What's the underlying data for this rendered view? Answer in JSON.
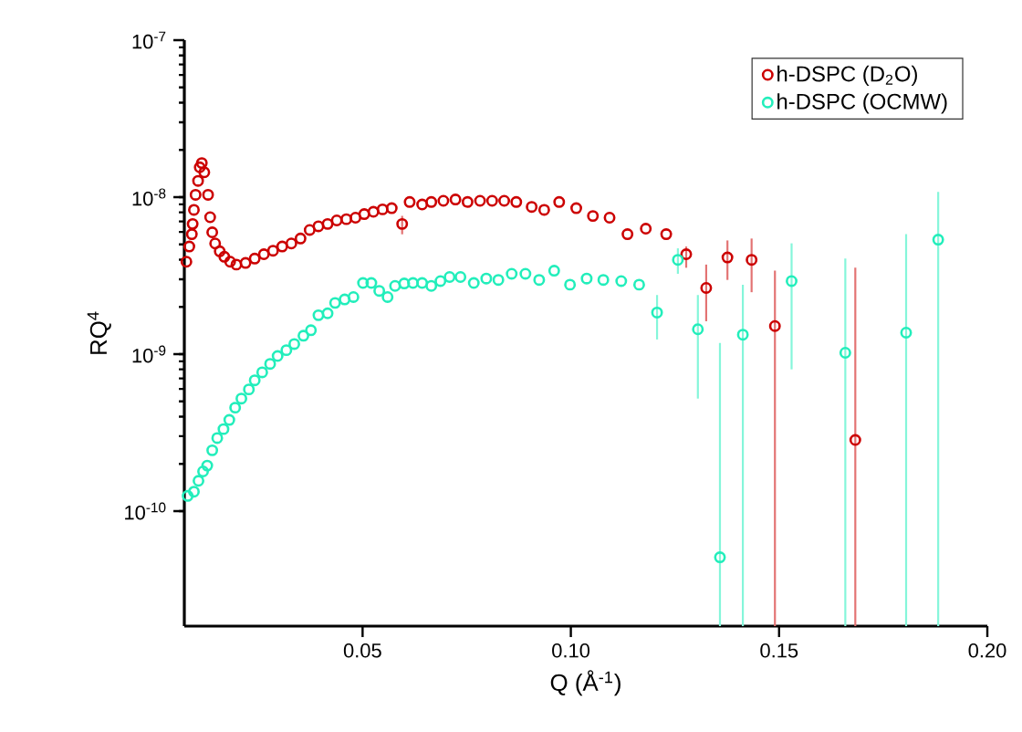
{
  "chart_data": {
    "type": "scatter",
    "xlabel": "Q (Å$^{-1}$)",
    "ylabel": "RQ$^{4}$",
    "log": "y",
    "marker": "circle",
    "legend": "top right",
    "grid": false,
    "xlim": [
      0.0072,
      0.2
    ],
    "ylim": [
      1.85e-11,
      1e-07
    ],
    "xticks": [
      0.05,
      {
        "value": 0.1,
        "label": "0.10"
      },
      0.15,
      {
        "value": 0.2,
        "label": "0.20"
      }
    ],
    "yticks": [
      {
        "value": 1e-10,
        "label": "10$^{-10}$"
      },
      {
        "value": 1e-09,
        "label": "10$^{-9}$"
      },
      {
        "value": 1e-08,
        "label": "10$^{-8}$"
      },
      {
        "value": 1e-07,
        "label": "10$^{-7}$"
      }
    ],
    "series": [
      {
        "name": "h-DSPC (D$_{2}$O)",
        "color": "#cc0000",
        "x": [
          0.0077,
          0.0084,
          0.009,
          0.0092,
          0.0095,
          0.0099,
          0.0105,
          0.0109,
          0.0114,
          0.012,
          0.0129,
          0.0134,
          0.0139,
          0.0146,
          0.0157,
          0.0168,
          0.0182,
          0.0197,
          0.0219,
          0.0241,
          0.0263,
          0.0285,
          0.0307,
          0.0329,
          0.0351,
          0.0373,
          0.0394,
          0.0416,
          0.0438,
          0.0461,
          0.0483,
          0.0504,
          0.0526,
          0.0548,
          0.057,
          0.0595,
          0.0613,
          0.0643,
          0.0665,
          0.0694,
          0.0723,
          0.0752,
          0.0782,
          0.0811,
          0.084,
          0.0869,
          0.0906,
          0.0936,
          0.0972,
          0.1013,
          0.1053,
          0.1093,
          0.1136,
          0.118,
          0.1229,
          0.1277,
          0.1325,
          0.1376,
          0.1434,
          0.149,
          0.1683
        ],
        "values": [
          3.88e-09,
          4.85e-09,
          5.81e-09,
          6.75e-09,
          8.3e-09,
          1.035e-08,
          1.27e-08,
          1.55e-08,
          1.65e-08,
          1.44e-08,
          1.035e-08,
          7.45e-09,
          5.97e-09,
          5.07e-09,
          4.52e-09,
          4.17e-09,
          3.88e-09,
          3.72e-09,
          3.81e-09,
          4.06e-09,
          4.33e-09,
          4.56e-09,
          4.85e-09,
          5.07e-09,
          5.45e-09,
          6.18e-09,
          6.52e-09,
          6.75e-09,
          7.11e-09,
          7.24e-09,
          7.4e-09,
          7.8e-09,
          8.07e-09,
          8.36e-09,
          8.51e-09,
          6.75e-09,
          9.31e-09,
          8.98e-09,
          9.31e-09,
          9.48e-09,
          9.66e-09,
          9.31e-09,
          9.48e-09,
          9.48e-09,
          9.48e-09,
          9.31e-09,
          8.67e-09,
          8.3e-09,
          9.31e-09,
          8.51e-09,
          7.59e-09,
          7.4e-09,
          5.81e-09,
          6.3e-09,
          5.81e-09,
          4.33e-09,
          2.64e-09,
          4.13e-09,
          3.99e-09,
          1.51e-09,
          2.84e-10
        ],
        "errors": [
          null,
          null,
          null,
          null,
          null,
          null,
          null,
          null,
          null,
          null,
          null,
          null,
          null,
          null,
          null,
          null,
          null,
          null,
          null,
          null,
          null,
          null,
          null,
          null,
          null,
          null,
          null,
          null,
          null,
          null,
          null,
          null,
          null,
          null,
          null,
          [
            5.8e-09,
            7.6e-09
          ],
          null,
          null,
          null,
          null,
          null,
          null,
          null,
          null,
          null,
          null,
          null,
          null,
          null,
          null,
          null,
          null,
          null,
          null,
          null,
          [
            3.55e-09,
            4.85e-09
          ],
          [
            1.62e-09,
            3.72e-09
          ],
          [
            2.97e-09,
            5.3e-09
          ],
          [
            2.48e-09,
            5.45e-09
          ],
          [
            1.85e-11,
            3.4e-09
          ],
          [
            1.85e-11,
            3.55e-09
          ]
        ]
      },
      {
        "name": "h-DSPC (OCMW)",
        "color": "#22eebb",
        "x": [
          0.008,
          0.0095,
          0.0106,
          0.0117,
          0.0127,
          0.0139,
          0.0151,
          0.0166,
          0.018,
          0.0194,
          0.0209,
          0.0227,
          0.0241,
          0.0259,
          0.0278,
          0.0296,
          0.0317,
          0.0336,
          0.0358,
          0.0376,
          0.0394,
          0.0416,
          0.0434,
          0.0457,
          0.0478,
          0.0501,
          0.0521,
          0.054,
          0.056,
          0.0578,
          0.06,
          0.0621,
          0.0643,
          0.0665,
          0.0687,
          0.0709,
          0.0735,
          0.0767,
          0.0797,
          0.0826,
          0.0858,
          0.0891,
          0.0924,
          0.096,
          0.0998,
          0.1038,
          0.1078,
          0.1121,
          0.1164,
          0.1207,
          0.1257,
          0.1305,
          0.1358,
          0.1413,
          0.153,
          0.1659,
          0.1805,
          0.1882
        ],
        "values": [
          1.25e-10,
          1.33e-10,
          1.56e-10,
          1.79e-10,
          1.95e-10,
          2.44e-10,
          2.92e-10,
          3.33e-10,
          3.81e-10,
          4.56e-10,
          5.21e-10,
          5.96e-10,
          6.81e-10,
          7.66e-10,
          8.67e-10,
          9.73e-10,
          1.06e-09,
          1.16e-09,
          1.31e-09,
          1.42e-09,
          1.77e-09,
          1.82e-09,
          2.12e-09,
          2.23e-09,
          2.31e-09,
          2.84e-09,
          2.84e-09,
          2.53e-09,
          2.31e-09,
          2.72e-09,
          2.82e-09,
          2.84e-09,
          2.84e-09,
          2.72e-09,
          2.92e-09,
          3.1e-09,
          3.1e-09,
          2.84e-09,
          3.03e-09,
          2.97e-09,
          3.25e-09,
          3.25e-09,
          2.97e-09,
          3.4e-09,
          2.77e-09,
          3.03e-09,
          2.97e-09,
          2.92e-09,
          2.77e-09,
          1.84e-09,
          3.99e-09,
          1.44e-09,
          5.08e-11,
          1.33e-09,
          2.92e-09,
          1.02e-09,
          1.37e-09,
          5.36e-09
        ],
        "errors": [
          null,
          null,
          null,
          null,
          null,
          null,
          null,
          null,
          null,
          null,
          null,
          null,
          null,
          null,
          null,
          null,
          null,
          null,
          null,
          null,
          null,
          null,
          null,
          null,
          null,
          null,
          null,
          null,
          null,
          null,
          null,
          null,
          null,
          null,
          null,
          null,
          null,
          null,
          null,
          null,
          null,
          null,
          null,
          null,
          null,
          null,
          null,
          null,
          null,
          [
            1.24e-09,
            2.38e-09
          ],
          [
            3.25e-09,
            4.72e-09
          ],
          [
            5.21e-10,
            2.38e-09
          ],
          [
            1.85e-11,
            1.18e-09
          ],
          [
            1.85e-11,
            2.77e-09
          ],
          [
            8e-10,
            5.08e-09
          ],
          [
            1.85e-11,
            4.06e-09
          ],
          [
            1.85e-11,
            5.81e-09
          ],
          [
            1.85e-11,
            1.08e-08
          ]
        ]
      }
    ]
  }
}
